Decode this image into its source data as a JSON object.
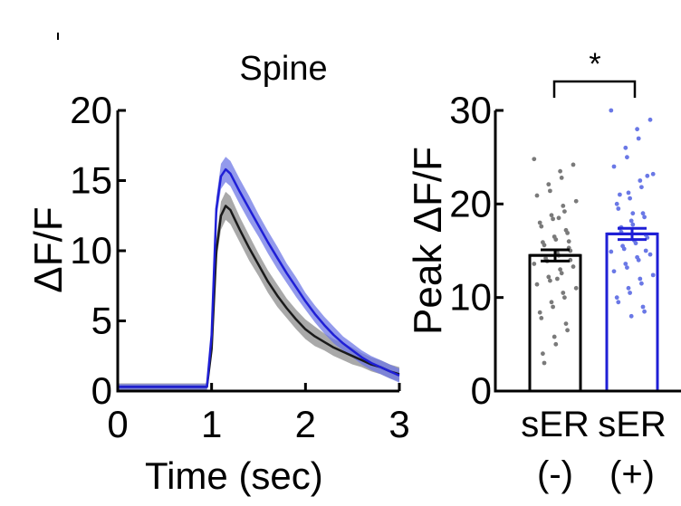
{
  "chart_data": [
    {
      "type": "line",
      "title": "Spine",
      "xlabel": "Time (sec)",
      "ylabel": "ΔF/F",
      "xlim": [
        0,
        3
      ],
      "ylim": [
        0,
        20
      ],
      "xticks": [
        "0",
        "1",
        "2",
        "3"
      ],
      "yticks": [
        "0",
        "5",
        "10",
        "15",
        "20"
      ],
      "grid": false,
      "series": [
        {
          "color": "#1a1a1a",
          "band_color": "#8c8c8c",
          "x": [
            0,
            0.25,
            0.5,
            0.75,
            0.95,
            1.0,
            1.05,
            1.1,
            1.15,
            1.2,
            1.3,
            1.4,
            1.5,
            1.6,
            1.7,
            1.8,
            1.9,
            2.0,
            2.1,
            2.2,
            2.3,
            2.4,
            2.5,
            2.6,
            2.7,
            2.8,
            2.9,
            3.0
          ],
          "y": [
            0.3,
            0.3,
            0.3,
            0.3,
            0.3,
            3.0,
            10.0,
            12.5,
            13.2,
            12.9,
            11.5,
            10.2,
            9.0,
            7.8,
            6.8,
            5.9,
            5.1,
            4.4,
            3.9,
            3.5,
            3.1,
            2.8,
            2.5,
            2.2,
            1.9,
            1.7,
            1.4,
            1.2
          ],
          "err": [
            0.25,
            0.25,
            0.25,
            0.25,
            0.25,
            0.5,
            0.8,
            1.0,
            1.0,
            1.0,
            0.9,
            0.9,
            0.8,
            0.8,
            0.8,
            0.7,
            0.7,
            0.7,
            0.7,
            0.6,
            0.6,
            0.6,
            0.6,
            0.5,
            0.5,
            0.5,
            0.5,
            0.5
          ]
        },
        {
          "color": "#1f1fd6",
          "band_color": "#6f78e6",
          "x": [
            0,
            0.25,
            0.5,
            0.75,
            0.95,
            1.0,
            1.05,
            1.1,
            1.15,
            1.2,
            1.3,
            1.4,
            1.5,
            1.6,
            1.7,
            1.8,
            1.9,
            2.0,
            2.1,
            2.2,
            2.3,
            2.4,
            2.5,
            2.6,
            2.7,
            2.8,
            2.9,
            3.0
          ],
          "y": [
            0.3,
            0.3,
            0.3,
            0.3,
            0.3,
            4.0,
            13.0,
            15.3,
            15.8,
            15.5,
            14.2,
            13.0,
            11.8,
            10.6,
            9.5,
            8.4,
            7.4,
            6.4,
            5.5,
            4.7,
            4.0,
            3.4,
            2.9,
            2.4,
            2.0,
            1.7,
            1.4,
            1.1
          ],
          "err": [
            0.2,
            0.2,
            0.2,
            0.2,
            0.2,
            0.5,
            0.8,
            0.9,
            0.9,
            0.9,
            0.9,
            0.9,
            0.8,
            0.8,
            0.8,
            0.7,
            0.7,
            0.6,
            0.6,
            0.6,
            0.6,
            0.5,
            0.5,
            0.5,
            0.5,
            0.5,
            0.5,
            0.5
          ]
        }
      ]
    },
    {
      "type": "bar",
      "ylabel": "Peak ΔF/F",
      "ylim": [
        0,
        30
      ],
      "yticks": [
        "0",
        "10",
        "20",
        "30"
      ],
      "categories": [
        {
          "line1": "sER",
          "line2": "(-)"
        },
        {
          "line1": "sER",
          "line2": "(+)"
        }
      ],
      "values": [
        14.5,
        16.8
      ],
      "sem": [
        0.6,
        0.6
      ],
      "bar_colors": [
        "#000000",
        "#1f1fd6"
      ],
      "dot_colors": [
        "#7a7a7a",
        "#6a78e6"
      ],
      "significance": "*",
      "points": [
        [
          24.8,
          24.2,
          23.5,
          22.8,
          22.1,
          21.4,
          20.9,
          20.3,
          19.8,
          19.2,
          18.8,
          18.4,
          18.0,
          17.6,
          17.2,
          16.9,
          16.5,
          16.2,
          15.9,
          15.6,
          15.3,
          15.0,
          14.8,
          14.5,
          14.2,
          13.9,
          13.6,
          13.3,
          13.0,
          12.6,
          12.2,
          11.8,
          11.4,
          11.0,
          10.5,
          10.0,
          9.5,
          9.0,
          8.4,
          7.8,
          7.2,
          6.5,
          5.8,
          5.0,
          4.0,
          3.0,
          16.0,
          14.0,
          12.0,
          18.5
        ],
        [
          30.0,
          29.0,
          28.0,
          27.0,
          26.0,
          25.0,
          24.0,
          23.2,
          22.5,
          21.8,
          21.2,
          20.6,
          20.0,
          19.5,
          19.0,
          18.6,
          18.2,
          17.8,
          17.4,
          17.0,
          16.7,
          16.4,
          16.1,
          15.8,
          15.5,
          15.2,
          14.9,
          14.6,
          14.3,
          14.0,
          13.6,
          13.2,
          12.8,
          12.4,
          12.0,
          11.5,
          11.0,
          10.5,
          10.0,
          9.5,
          9.0,
          8.5,
          8.0,
          19.0,
          21.0,
          17.5,
          15.0,
          23.0
        ]
      ]
    }
  ]
}
